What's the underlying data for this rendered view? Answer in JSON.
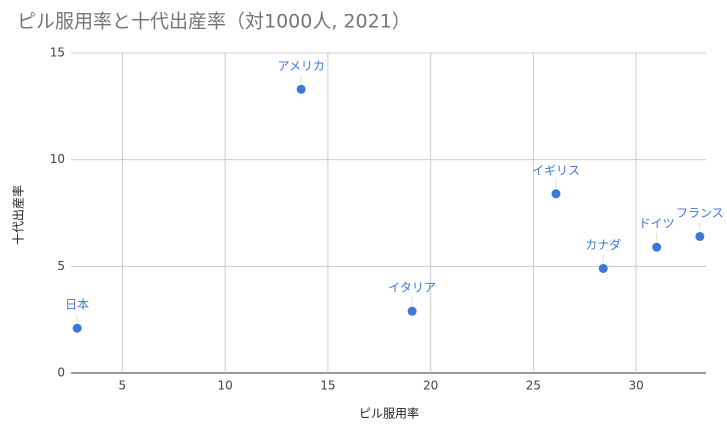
{
  "chart_data": {
    "type": "scatter",
    "title": "ピル服用率と十代出産率（対1000人, 2021）",
    "x_label": "ピル服用率",
    "y_label": "十代出産率",
    "series": [
      {
        "color": "#3c78d8",
        "labels": [
          "日本",
          "アメリカ",
          "イタリア",
          "イギリス",
          "カナダ",
          "ドイツ",
          "フランス"
        ],
        "x": [
          2.8,
          13.7,
          19.1,
          26.1,
          28.4,
          31.0,
          33.1
        ],
        "values": [
          2.1,
          13.3,
          2.9,
          8.4,
          4.9,
          5.9,
          6.4
        ]
      }
    ],
    "xlim": [
      2.5,
      33.4
    ],
    "ylim": [
      0,
      15
    ],
    "xticks": [
      5,
      10,
      15,
      20,
      25,
      30
    ],
    "yticks": [
      0,
      5,
      10,
      15
    ],
    "grid": true
  }
}
